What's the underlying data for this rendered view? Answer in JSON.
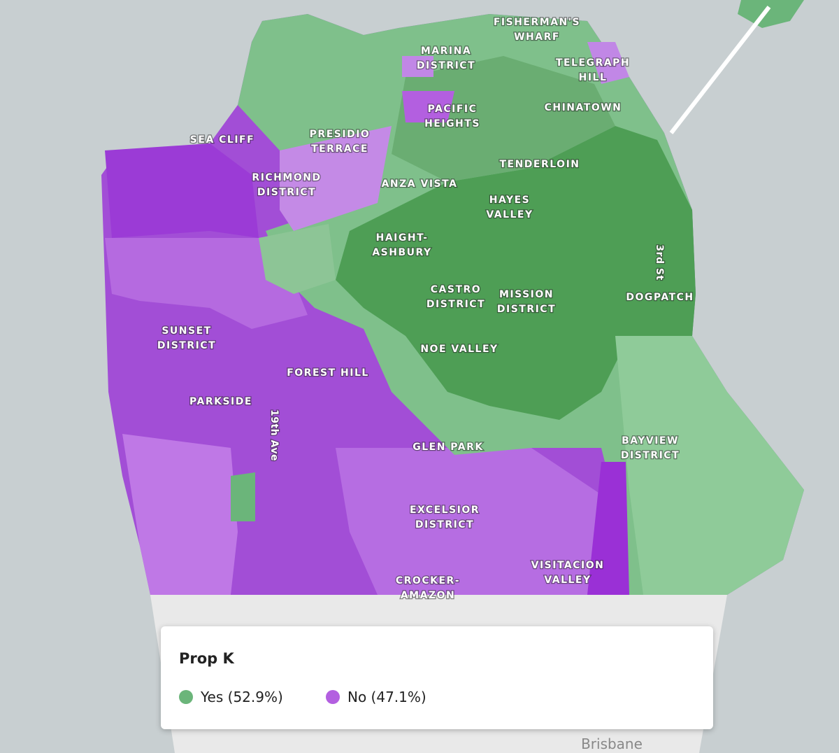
{
  "map": {
    "labels": [
      {
        "lines": [
          "FISHERMAN'S",
          "WHARF"
        ]
      },
      {
        "lines": [
          "MARINA",
          "DISTRICT"
        ]
      },
      {
        "lines": [
          "TELEGRAPH",
          "HILL"
        ]
      },
      {
        "lines": [
          "PACIFIC",
          "HEIGHTS"
        ]
      },
      {
        "lines": [
          "CHINATOWN"
        ]
      },
      {
        "lines": [
          "SEA CLIFF"
        ]
      },
      {
        "lines": [
          "PRESIDIO",
          "TERRACE"
        ]
      },
      {
        "lines": [
          "TENDERLOIN"
        ]
      },
      {
        "lines": [
          "RICHMOND",
          "DISTRICT"
        ]
      },
      {
        "lines": [
          "ANZA VISTA"
        ]
      },
      {
        "lines": [
          "HAYES",
          "VALLEY"
        ]
      },
      {
        "lines": [
          "HAIGHT-",
          "ASHBURY"
        ]
      },
      {
        "lines": [
          "3rd St"
        ]
      },
      {
        "lines": [
          "CASTRO",
          "DISTRICT"
        ]
      },
      {
        "lines": [
          "MISSION",
          "DISTRICT"
        ]
      },
      {
        "lines": [
          "DOGPATCH"
        ]
      },
      {
        "lines": [
          "SUNSET",
          "DISTRICT"
        ]
      },
      {
        "lines": [
          "FOREST HILL"
        ]
      },
      {
        "lines": [
          "NOE VALLEY"
        ]
      },
      {
        "lines": [
          "PARKSIDE"
        ]
      },
      {
        "lines": [
          "19th Ave"
        ]
      },
      {
        "lines": [
          "GLEN PARK"
        ]
      },
      {
        "lines": [
          "BAYVIEW",
          "DISTRICT"
        ]
      },
      {
        "lines": [
          "EXCELSIOR",
          "DISTRICT"
        ]
      },
      {
        "lines": [
          "VISITACION",
          "VALLEY"
        ]
      },
      {
        "lines": [
          "CROCKER-",
          "AMAZON"
        ]
      }
    ],
    "basemap_label": "Brisbane"
  },
  "legend": {
    "title": "Prop K",
    "items": [
      {
        "label": "Yes (52.9%)",
        "color": "#6bb57a"
      },
      {
        "label": "No (47.1%)",
        "color": "#b35fe0"
      }
    ]
  }
}
